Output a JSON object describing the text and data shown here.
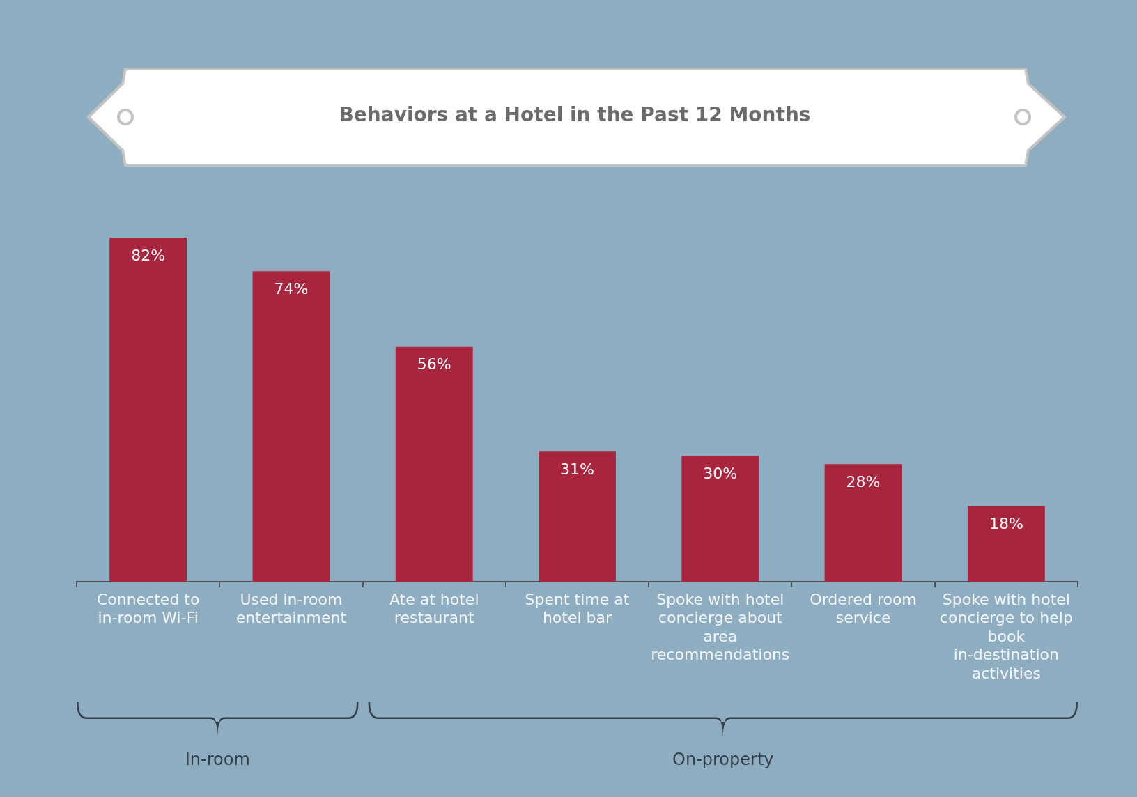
{
  "chart_data": {
    "type": "bar",
    "title": "Behaviors at a Hotel in the Past 12 Months",
    "categories": [
      "Connected to in-room Wi-Fi",
      "Used in-room entertainment",
      "Ate at hotel restaurant",
      "Spent time at hotel bar",
      "Spoke with hotel concierge about area recommendations",
      "Ordered room service",
      "Spoke with hotel concierge to help book in-destination activities"
    ],
    "values": [
      82,
      74,
      56,
      31,
      30,
      28,
      18
    ],
    "color": "#a8253e",
    "value_labels": [
      "82%",
      "74%",
      "56%",
      "31%",
      "30%",
      "28%",
      "18%"
    ],
    "annotations": [
      "In-room",
      "On-property"
    ]
  }
}
